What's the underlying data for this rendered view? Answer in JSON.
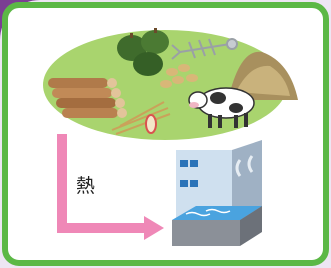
{
  "arrow_label": "熱"
}
